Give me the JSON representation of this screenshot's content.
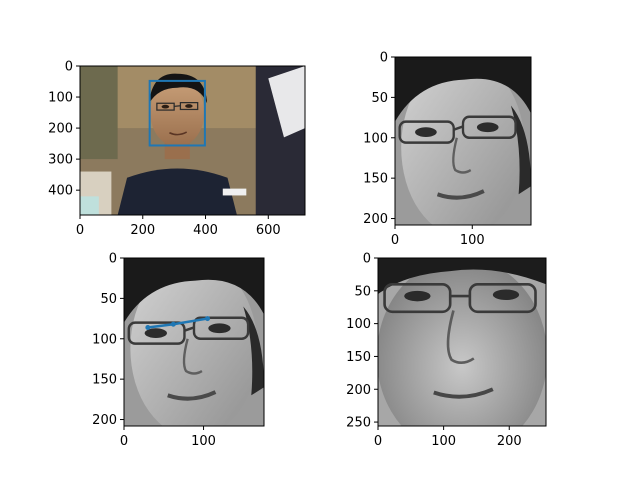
{
  "figure": {
    "background": "#ffffff",
    "axis_color": "#000000",
    "photo_grayscale": true,
    "face_box_color": "#1f77b4",
    "eye_line_color": "#1f77b4"
  },
  "chart_data": [
    {
      "type": "image",
      "name": "original",
      "image_size": [
        717,
        480
      ],
      "xlim": [
        0,
        717
      ],
      "ylim": [
        480,
        0
      ],
      "xticks": [
        0,
        200,
        400,
        600
      ],
      "yticks": [
        0,
        100,
        200,
        300,
        400
      ],
      "xtick_labels": [
        "0",
        "200",
        "400",
        "600"
      ],
      "ytick_labels": [
        "0",
        "100",
        "200",
        "300",
        "400"
      ],
      "overlays": [
        {
          "kind": "rectangle",
          "x": 222,
          "y": 48,
          "width": 176,
          "height": 208,
          "color": "#1f77b4"
        }
      ]
    },
    {
      "type": "image",
      "name": "face-crop",
      "image_size": [
        176,
        208
      ],
      "xlim": [
        0,
        176
      ],
      "ylim": [
        208,
        0
      ],
      "xticks": [
        0,
        100
      ],
      "yticks": [
        0,
        50,
        100,
        150,
        200
      ],
      "xtick_labels": [
        "0",
        "100"
      ],
      "ytick_labels": [
        "0",
        "50",
        "100",
        "150",
        "200"
      ],
      "overlays": []
    },
    {
      "type": "image",
      "name": "face-crop-eyes",
      "image_size": [
        176,
        208
      ],
      "xlim": [
        0,
        176
      ],
      "ylim": [
        208,
        0
      ],
      "xticks": [
        0,
        100
      ],
      "yticks": [
        0,
        50,
        100,
        150,
        200
      ],
      "xtick_labels": [
        "0",
        "100"
      ],
      "ytick_labels": [
        "0",
        "50",
        "100",
        "150",
        "200"
      ],
      "overlays": [
        {
          "kind": "line",
          "x": [
            30,
            62,
            105
          ],
          "y": [
            86,
            82,
            75
          ],
          "color": "#1f77b4"
        }
      ]
    },
    {
      "type": "image",
      "name": "aligned-face",
      "image_size": [
        256,
        256
      ],
      "xlim": [
        0,
        256
      ],
      "ylim": [
        256,
        0
      ],
      "xticks": [
        0,
        100,
        200
      ],
      "yticks": [
        0,
        50,
        100,
        150,
        200,
        250
      ],
      "xtick_labels": [
        "0",
        "100",
        "200"
      ],
      "ytick_labels": [
        "0",
        "50",
        "100",
        "150",
        "200",
        "250"
      ],
      "overlays": []
    }
  ]
}
